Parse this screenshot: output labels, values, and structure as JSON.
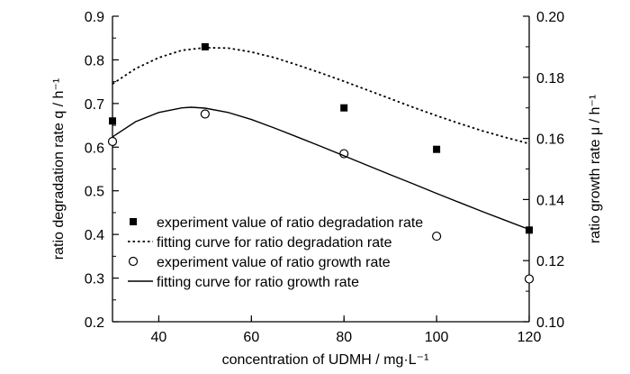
{
  "chart_data": {
    "type": "scatter",
    "xlabel": "concentration of UDMH / mg·L⁻¹",
    "ylabel": "ratio degradation rate q / h⁻¹",
    "y2label": "ratio growth rate μ / h⁻¹",
    "xlim": [
      30,
      120
    ],
    "ylim": [
      0.2,
      0.9
    ],
    "y2lim": [
      0.1,
      0.2
    ],
    "x_ticks": [
      40,
      60,
      80,
      100,
      120
    ],
    "x_tick_labels": [
      "40",
      "60",
      "80",
      "100",
      "120"
    ],
    "y_ticks": [
      0.2,
      0.3,
      0.4,
      0.5,
      0.6,
      0.7,
      0.8,
      0.9
    ],
    "y_tick_labels": [
      "0.2",
      "0.3",
      "0.4",
      "0.5",
      "0.6",
      "0.7",
      "0.8",
      "0.9"
    ],
    "y2_ticks": [
      0.1,
      0.12,
      0.14,
      0.16,
      0.18,
      0.2
    ],
    "y2_tick_labels": [
      "0.10",
      "0.12",
      "0.14",
      "0.16",
      "0.18",
      "0.20"
    ],
    "grid": false,
    "legend_position": "bottom-left",
    "series": [
      {
        "name": "experiment value of ratio degradation rate",
        "kind": "marker",
        "marker": "filled-square",
        "axis": "left",
        "x": [
          30,
          50,
          80,
          100,
          120
        ],
        "y": [
          0.66,
          0.83,
          0.69,
          0.595,
          0.41
        ]
      },
      {
        "name": "fitting curve for ratio degradation rate",
        "kind": "line",
        "style": "dotted",
        "axis": "left",
        "x": [
          30,
          35,
          40,
          45,
          50,
          55,
          60,
          65,
          70,
          75,
          80,
          85,
          90,
          95,
          100,
          105,
          110,
          115,
          120
        ],
        "y": [
          0.745,
          0.78,
          0.805,
          0.822,
          0.828,
          0.827,
          0.818,
          0.805,
          0.788,
          0.77,
          0.751,
          0.731,
          0.711,
          0.691,
          0.672,
          0.654,
          0.637,
          0.622,
          0.608
        ]
      },
      {
        "name": "experiment value of ratio growth rate",
        "kind": "marker",
        "marker": "open-circle",
        "axis": "right",
        "x": [
          30,
          50,
          80,
          100,
          120
        ],
        "y": [
          0.159,
          0.168,
          0.155,
          0.128,
          0.114
        ]
      },
      {
        "name": "fitting curve for ratio growth rate",
        "kind": "line",
        "style": "solid",
        "axis": "right",
        "x": [
          30,
          35,
          40,
          45,
          47,
          50,
          55,
          60,
          65,
          70,
          75,
          80,
          85,
          90,
          95,
          100,
          105,
          110,
          115,
          120
        ],
        "y": [
          0.1605,
          0.1655,
          0.1685,
          0.17,
          0.1702,
          0.1699,
          0.1685,
          0.1662,
          0.1634,
          0.1604,
          0.1574,
          0.1543,
          0.1512,
          0.1481,
          0.1451,
          0.142,
          0.139,
          0.136,
          0.1331,
          0.1302
        ]
      }
    ],
    "colors": {
      "ink": "#000000",
      "background": "#ffffff"
    }
  }
}
